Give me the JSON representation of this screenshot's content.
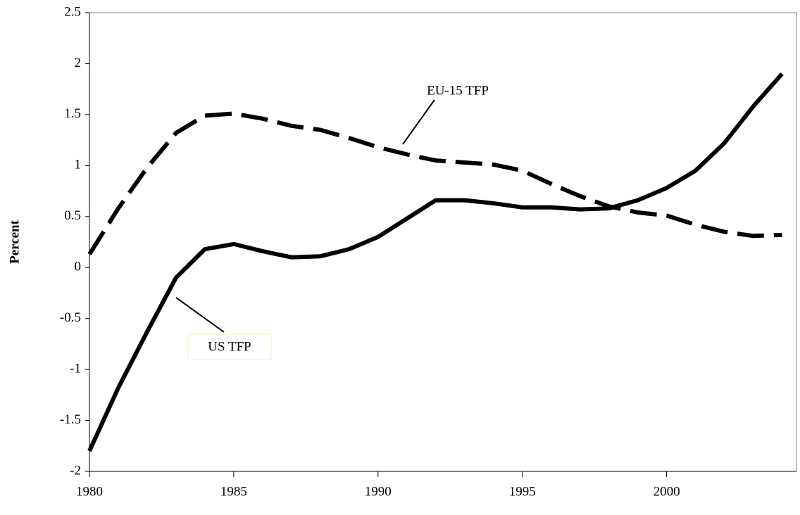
{
  "chart_data": {
    "type": "line",
    "y_label": "Percent",
    "x": [
      1980,
      1981,
      1982,
      1983,
      1984,
      1985,
      1986,
      1987,
      1988,
      1989,
      1990,
      1991,
      1992,
      1993,
      1994,
      1995,
      1996,
      1997,
      1998,
      1999,
      2000,
      2001,
      2002,
      2003,
      2004
    ],
    "series": [
      {
        "name": "US TFP",
        "color": "#000000",
        "dash": "solid",
        "values": [
          -1.8,
          -1.18,
          -0.63,
          -0.1,
          0.18,
          0.23,
          0.16,
          0.1,
          0.11,
          0.18,
          0.3,
          0.48,
          0.66,
          0.66,
          0.63,
          0.59,
          0.59,
          0.57,
          0.58,
          0.66,
          0.78,
          0.95,
          1.22,
          1.58,
          1.9
        ]
      },
      {
        "name": "EU-15 TFP",
        "color": "#000000",
        "dash": "dashed",
        "values": [
          0.13,
          0.58,
          0.98,
          1.32,
          1.49,
          1.51,
          1.46,
          1.39,
          1.35,
          1.27,
          1.18,
          1.11,
          1.05,
          1.03,
          1.01,
          0.95,
          0.82,
          0.7,
          0.6,
          0.54,
          0.51,
          0.42,
          0.35,
          0.31,
          0.32
        ]
      }
    ],
    "xlim": [
      1980,
      2004.5
    ],
    "xticks": [
      1980,
      1985,
      1990,
      1995,
      2000
    ],
    "ylim": [
      -2,
      2.5
    ],
    "yticks": [
      -2,
      -1.5,
      -1,
      -0.5,
      0,
      0.5,
      1,
      1.5,
      2,
      2.5
    ],
    "grid": false
  }
}
